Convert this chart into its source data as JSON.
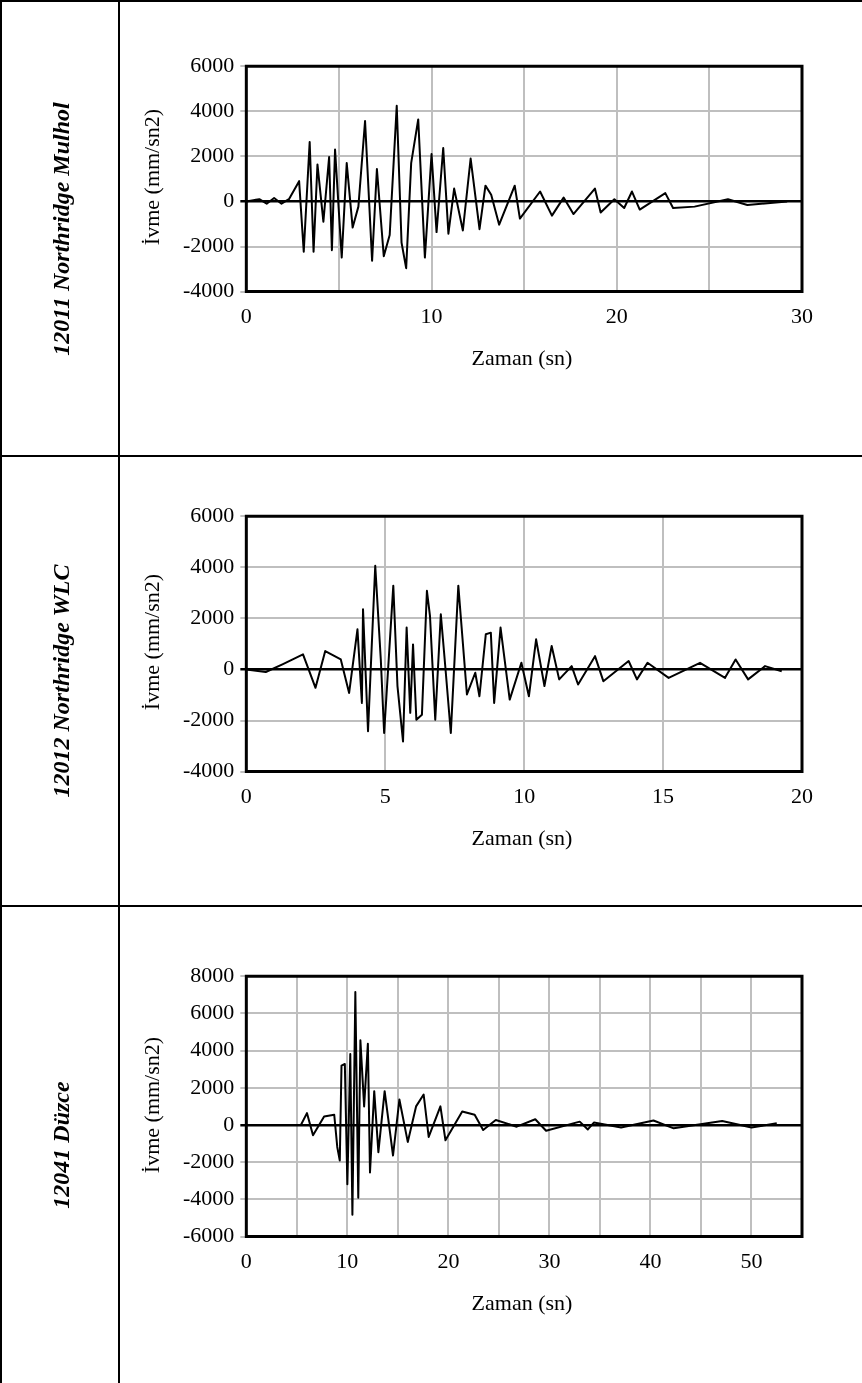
{
  "chart_data": [
    {
      "type": "line",
      "title": "12011 Northridge Mulhol",
      "xlabel": "Zaman (sn)",
      "ylabel": "İvme (mm/sn2)",
      "xlim": [
        0,
        30
      ],
      "ylim": [
        -4000,
        6000
      ],
      "xticks": [
        0,
        {
          "value": 5,
          "label": null
        },
        10,
        {
          "value": 15,
          "label": null
        },
        20,
        {
          "value": 25,
          "label": null
        },
        30
      ],
      "yticks": [
        -4000,
        -2000,
        0,
        2000,
        4000,
        6000
      ],
      "grid": true,
      "series": [
        {
          "color": "#000000",
          "x": [
            0,
            0.7,
            1.1,
            1.5,
            1.9,
            2.3,
            2.85,
            3.1,
            3.42,
            3.63,
            3.84,
            4.16,
            4.47,
            4.62,
            4.79,
            5.15,
            5.42,
            5.74,
            6.05,
            6.41,
            6.79,
            7.05,
            7.42,
            7.74,
            8.12,
            8.38,
            8.63,
            8.9,
            9.28,
            9.64,
            10.0,
            10.27,
            10.63,
            10.91,
            11.22,
            11.69,
            12.11,
            12.59,
            12.91,
            13.22,
            13.65,
            14.49,
            14.77,
            15.86,
            16.5,
            17.13,
            17.66,
            18.82,
            19.13,
            19.87,
            20.4,
            20.82,
            21.24,
            22.62,
            23.04,
            24.2,
            26.0,
            27.05,
            29.2
          ],
          "values": [
            0,
            100,
            -100,
            150,
            -100,
            100,
            900,
            -2230,
            2640,
            -2230,
            1640,
            -900,
            1970,
            -2160,
            2300,
            -2490,
            1700,
            -1160,
            -230,
            3570,
            -2630,
            1440,
            -2430,
            -1490,
            4240,
            -1830,
            -2960,
            1700,
            3640,
            -2490,
            2100,
            -1360,
            2370,
            -1430,
            570,
            -1290,
            1900,
            -1230,
            700,
            300,
            -1030,
            700,
            -760,
            440,
            -630,
            170,
            -560,
            570,
            -490,
            100,
            -290,
            440,
            -360,
            370,
            -290,
            -230,
            100,
            -160,
            0
          ]
        }
      ]
    },
    {
      "type": "line",
      "title": "12012 Northridge WLC",
      "xlabel": "Zaman (sn)",
      "ylabel": "İvme (mm/sn2)",
      "xlim": [
        0,
        20
      ],
      "ylim": [
        -4000,
        6000
      ],
      "xticks": [
        0,
        5,
        10,
        15,
        20
      ],
      "yticks": [
        -4000,
        -2000,
        0,
        2000,
        4000,
        6000
      ],
      "grid": true,
      "series": [
        {
          "color": "#000000",
          "x": [
            0,
            0.7,
            1.3,
            2.04,
            2.49,
            2.84,
            3.4,
            3.7,
            4.0,
            4.16,
            4.2,
            4.38,
            4.64,
            4.84,
            4.96,
            5.29,
            5.44,
            5.64,
            5.77,
            5.9,
            6.0,
            6.12,
            6.32,
            6.5,
            6.61,
            6.8,
            7.0,
            7.18,
            7.36,
            7.63,
            7.94,
            8.24,
            8.39,
            8.62,
            8.8,
            8.92,
            9.15,
            9.48,
            9.9,
            10.17,
            10.43,
            10.73,
            10.99,
            11.26,
            11.71,
            11.94,
            12.55,
            12.85,
            13.76,
            14.06,
            14.44,
            15.2,
            16.33,
            17.23,
            17.61,
            18.06,
            18.67,
            19.27
          ],
          "values": [
            0,
            -100,
            200,
            590,
            -720,
            720,
            390,
            -920,
            1570,
            -1310,
            2360,
            -2420,
            4060,
            390,
            -2490,
            3280,
            -650,
            -2820,
            1640,
            -1700,
            980,
            -1970,
            -1770,
            3080,
            2100,
            -1970,
            2160,
            -130,
            -2490,
            3280,
            -980,
            -130,
            -1050,
            1380,
            1440,
            -1310,
            1640,
            -1180,
            260,
            -1050,
            1180,
            -650,
            920,
            -390,
            130,
            -590,
            520,
            -460,
            330,
            -390,
            260,
            -330,
            260,
            -330,
            390,
            -390,
            130,
            -70
          ]
        }
      ]
    },
    {
      "type": "line",
      "title": "12041 Düzce",
      "xlabel": "Zaman (sn)",
      "ylabel": "İvme (mm/sn2)",
      "xlim": [
        0,
        55
      ],
      "ylim": [
        -6000,
        8000
      ],
      "xticks": [
        0,
        {
          "value": 5,
          "label": null
        },
        10,
        {
          "value": 15,
          "label": null
        },
        20,
        {
          "value": 25,
          "label": null
        },
        30,
        {
          "value": 35,
          "label": null
        },
        40,
        {
          "value": 45,
          "label": null
        },
        50,
        {
          "value": 55,
          "label": null
        }
      ],
      "yticks": [
        -6000,
        -4000,
        -2000,
        0,
        2000,
        4000,
        6000,
        8000
      ],
      "grid": true,
      "series": [
        {
          "color": "#000000",
          "x": [
            5.4,
            6.0,
            6.6,
            7.7,
            8.7,
            9.0,
            9.25,
            9.42,
            9.75,
            10.0,
            10.29,
            10.5,
            10.79,
            11.08,
            11.29,
            11.66,
            12.03,
            12.24,
            12.66,
            13.07,
            13.69,
            14.52,
            15.15,
            15.98,
            16.8,
            17.55,
            18.05,
            19.21,
            19.71,
            21.37,
            22.6,
            23.44,
            24.69,
            26.76,
            28.6,
            29.67,
            33.0,
            33.8,
            34.4,
            37.1,
            40.3,
            42.3,
            47.1,
            50.0,
            52.5
          ],
          "values": [
            0,
            640,
            -550,
            460,
            550,
            -1180,
            -1910,
            3190,
            3280,
            -3190,
            3820,
            -4820,
            7150,
            -3910,
            4550,
            1000,
            4370,
            -2550,
            1820,
            -1460,
            1820,
            -1640,
            1370,
            -910,
            1000,
            1640,
            -640,
            1000,
            -820,
            730,
            550,
            -270,
            270,
            -90,
            310,
            -310,
            180,
            -240,
            130,
            -130,
            240,
            -180,
            220,
            -130,
            90
          ]
        }
      ]
    }
  ]
}
